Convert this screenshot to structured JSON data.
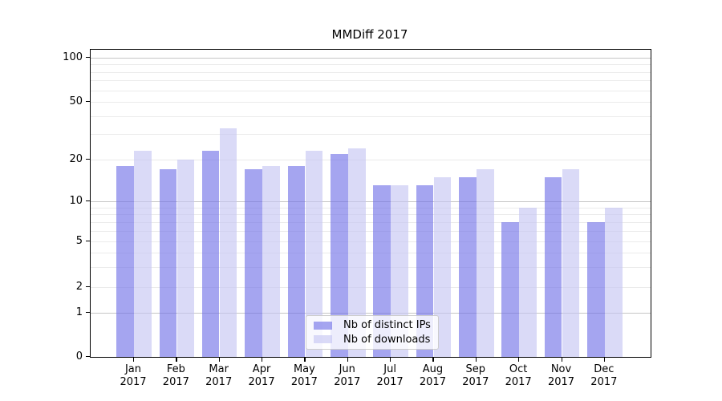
{
  "chart_data": {
    "type": "bar",
    "title": "MMDiff 2017",
    "months": [
      "Jan",
      "Feb",
      "Mar",
      "Apr",
      "May",
      "Jun",
      "Jul",
      "Aug",
      "Sep",
      "Oct",
      "Nov",
      "Dec"
    ],
    "year": "2017",
    "series": [
      {
        "name": "Nb of distinct IPs",
        "key": "distinct-ips",
        "color_hex": "#a5a5f0",
        "fill_rgba": "rgba(112,112,232,0.63)",
        "values": [
          18,
          17,
          23,
          17,
          18,
          22,
          13,
          13,
          15,
          7,
          15,
          7
        ]
      },
      {
        "name": "Nb of downloads",
        "key": "downloads",
        "color_hex": "#dadaf7",
        "fill_rgba": "rgba(196,196,242,0.63)",
        "values": [
          23,
          20,
          33,
          18,
          23,
          24,
          13,
          15,
          17,
          9,
          17,
          9
        ]
      }
    ],
    "yscale": "symlog",
    "y_ticks": [
      0,
      1,
      2,
      5,
      10,
      20,
      50,
      100
    ],
    "y_minor_gridlines": [
      2,
      3,
      4,
      5,
      6,
      7,
      8,
      9,
      20,
      30,
      40,
      50,
      60,
      70,
      80,
      90
    ],
    "y_major_gridlines": [
      1,
      10,
      100
    ],
    "ylim": [
      0,
      115
    ],
    "grid": true,
    "legend_position": "lower center",
    "grid_major_color": "#c6c6c6",
    "grid_minor_color": "#ebebeb"
  }
}
